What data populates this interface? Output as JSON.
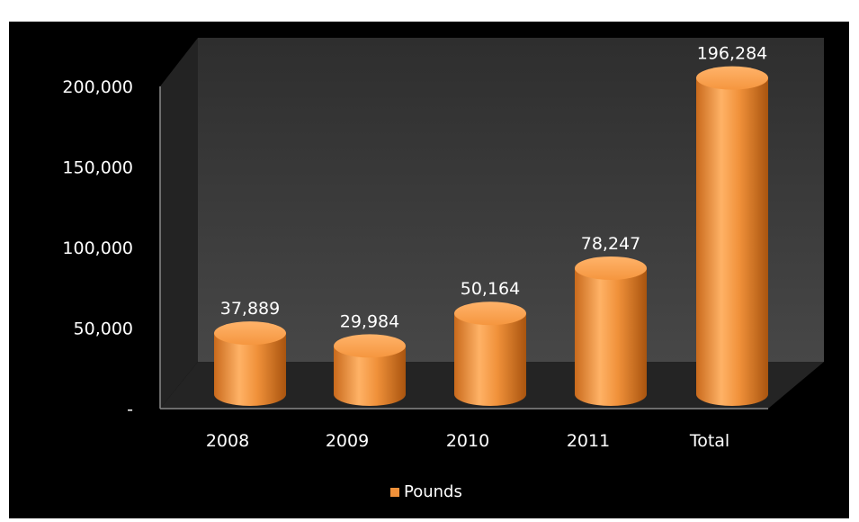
{
  "header": {
    "title_fragment": ""
  },
  "chart_data": {
    "type": "bar",
    "style": "3d-cylinder",
    "categories": [
      "2008",
      "2009",
      "2010",
      "2011",
      "Total"
    ],
    "series": [
      {
        "name": "Pounds",
        "values": [
          37889,
          29984,
          50164,
          78247,
          196284
        ],
        "color": "#f0913a"
      }
    ],
    "data_labels": [
      "37,889",
      "29,984",
      "50,164",
      "78,247",
      "196,284"
    ],
    "y_ticks": [
      {
        "value": 0,
        "label": "-"
      },
      {
        "value": 50000,
        "label": "50,000"
      },
      {
        "value": 100000,
        "label": "100,000"
      },
      {
        "value": 150000,
        "label": "150,000"
      },
      {
        "value": 200000,
        "label": "200,000"
      }
    ],
    "ylim": [
      0,
      200000
    ],
    "legend_position": "bottom",
    "legend": [
      {
        "label": "Pounds",
        "color": "#f0913a"
      }
    ],
    "colors": {
      "background": "#000000",
      "wall": "#3a3a3a",
      "floor": "#2a2a2a",
      "text": "#ffffff",
      "bar": "#f0913a"
    }
  }
}
